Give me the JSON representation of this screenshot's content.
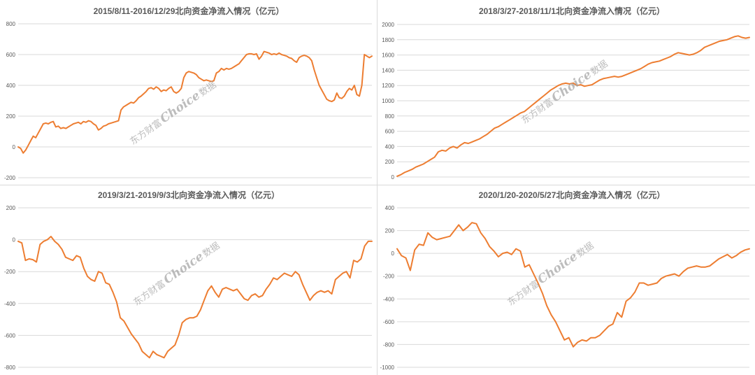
{
  "watermark": {
    "brand_cn": "东方财富",
    "brand_en": "Choice",
    "suffix": "数据"
  },
  "colors": {
    "line": "#ed7d31",
    "grid": "#d9d9d9",
    "text": "#595959",
    "watermark": "#a6a6a6"
  },
  "chart_data": [
    {
      "type": "line",
      "title": "2015/8/11-2016/12/29北向资金净流入情况（亿元）",
      "xlabel": "",
      "ylabel": "",
      "ylim": [
        -200,
        800
      ],
      "yticks": [
        -200,
        0,
        200,
        400,
        600,
        800
      ],
      "grid": true,
      "legend": "none",
      "series": [
        {
          "values": [
            0,
            -10,
            -40,
            -20,
            10,
            40,
            70,
            60,
            90,
            120,
            150,
            155,
            150,
            160,
            165,
            130,
            135,
            120,
            125,
            120,
            130,
            140,
            150,
            155,
            160,
            150,
            165,
            160,
            170,
            165,
            150,
            140,
            110,
            120,
            135,
            140,
            150,
            155,
            160,
            165,
            170,
            240,
            260,
            270,
            280,
            290,
            285,
            300,
            320,
            330,
            345,
            360,
            380,
            385,
            375,
            390,
            380,
            360,
            370,
            365,
            380,
            390,
            360,
            350,
            360,
            380,
            450,
            480,
            490,
            485,
            480,
            470,
            450,
            440,
            430,
            435,
            430,
            425,
            430,
            480,
            490,
            510,
            500,
            510,
            505,
            510,
            520,
            530,
            540,
            560,
            580,
            600,
            605,
            605,
            600,
            605,
            570,
            590,
            620,
            615,
            610,
            600,
            605,
            600,
            610,
            600,
            595,
            590,
            580,
            575,
            560,
            550,
            580,
            590,
            595,
            590,
            580,
            560,
            500,
            450,
            400,
            370,
            340,
            310,
            300,
            295,
            305,
            350,
            320,
            315,
            330,
            360,
            380,
            370,
            400,
            340,
            330,
            400,
            600,
            590,
            580,
            590
          ]
        }
      ]
    },
    {
      "type": "line",
      "title": "2018/3/27-2018/11/1北向资金净流入情况（亿元）",
      "xlabel": "",
      "ylabel": "",
      "ylim": [
        0,
        2000
      ],
      "yticks": [
        0,
        200,
        400,
        600,
        800,
        1000,
        1200,
        1400,
        1600,
        1800,
        2000
      ],
      "grid": true,
      "legend": "none",
      "series": [
        {
          "values": [
            10,
            30,
            60,
            80,
            100,
            130,
            150,
            170,
            200,
            230,
            260,
            330,
            350,
            340,
            380,
            400,
            380,
            420,
            450,
            440,
            460,
            480,
            500,
            530,
            560,
            600,
            640,
            660,
            690,
            720,
            750,
            780,
            810,
            840,
            860,
            900,
            940,
            980,
            1020,
            1060,
            1100,
            1140,
            1170,
            1200,
            1220,
            1230,
            1220,
            1230,
            1200,
            1210,
            1190,
            1200,
            1210,
            1240,
            1270,
            1290,
            1300,
            1310,
            1320,
            1310,
            1320,
            1340,
            1360,
            1380,
            1400,
            1420,
            1450,
            1480,
            1500,
            1510,
            1520,
            1540,
            1560,
            1580,
            1610,
            1630,
            1620,
            1610,
            1600,
            1610,
            1630,
            1660,
            1700,
            1720,
            1740,
            1760,
            1780,
            1790,
            1800,
            1820,
            1840,
            1850,
            1830,
            1820,
            1830
          ]
        }
      ]
    },
    {
      "type": "line",
      "title": "2019/3/21-2019/9/3北向资金净流入情况（亿元）",
      "xlabel": "",
      "ylabel": "",
      "ylim": [
        -800,
        200
      ],
      "yticks": [
        -800,
        -600,
        -400,
        -200,
        0,
        200
      ],
      "grid": true,
      "legend": "none",
      "series": [
        {
          "values": [
            -10,
            -20,
            -130,
            -120,
            -125,
            -140,
            -30,
            -10,
            0,
            20,
            -10,
            -30,
            -60,
            -110,
            -120,
            -130,
            -100,
            -110,
            -180,
            -230,
            -250,
            -260,
            -200,
            -210,
            -270,
            -280,
            -330,
            -390,
            -490,
            -510,
            -550,
            -590,
            -620,
            -650,
            -700,
            -720,
            -740,
            -700,
            -720,
            -730,
            -740,
            -700,
            -680,
            -660,
            -600,
            -520,
            -500,
            -490,
            -490,
            -480,
            -440,
            -380,
            -320,
            -290,
            -330,
            -360,
            -310,
            -300,
            -310,
            -320,
            -310,
            -340,
            -370,
            -380,
            -350,
            -340,
            -360,
            -350,
            -310,
            -280,
            -240,
            -250,
            -230,
            -210,
            -220,
            -230,
            -200,
            -220,
            -280,
            -330,
            -380,
            -350,
            -330,
            -320,
            -330,
            -320,
            -340,
            -250,
            -230,
            -210,
            -200,
            -240,
            -130,
            -140,
            -120,
            -40,
            -10,
            -10
          ]
        }
      ]
    },
    {
      "type": "line",
      "title": "2020/1/20-2020/5/27北向资金净流入情况（亿元）",
      "xlabel": "",
      "ylabel": "",
      "ylim": [
        -1000,
        400
      ],
      "yticks": [
        -1000,
        -800,
        -600,
        -400,
        -200,
        0,
        200,
        400
      ],
      "grid": true,
      "legend": "none",
      "series": [
        {
          "values": [
            40,
            -20,
            -40,
            -150,
            30,
            80,
            70,
            180,
            140,
            120,
            130,
            140,
            150,
            200,
            250,
            200,
            230,
            270,
            260,
            180,
            130,
            60,
            20,
            -30,
            0,
            10,
            -10,
            40,
            20,
            -120,
            -100,
            -180,
            -260,
            -350,
            -460,
            -540,
            -600,
            -680,
            -760,
            -740,
            -820,
            -780,
            -760,
            -770,
            -740,
            -740,
            -720,
            -680,
            -640,
            -620,
            -520,
            -560,
            -420,
            -390,
            -340,
            -260,
            -260,
            -280,
            -270,
            -260,
            -220,
            -200,
            -190,
            -180,
            -200,
            -160,
            -130,
            -120,
            -110,
            -120,
            -120,
            -110,
            -80,
            -50,
            -30,
            -10,
            -40,
            -20,
            10,
            30,
            40
          ]
        }
      ]
    }
  ]
}
